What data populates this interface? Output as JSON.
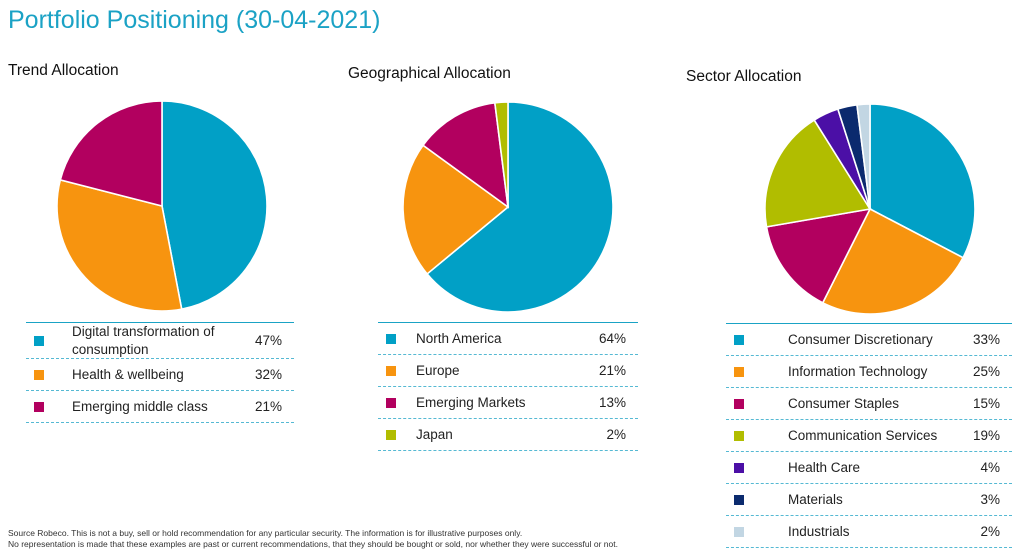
{
  "page": {
    "title": "Portfolio Positioning (30-04-2021)"
  },
  "chart_data": [
    {
      "type": "pie",
      "title": "Trend Allocation",
      "slices": [
        {
          "label": "Digital transformation of consumption",
          "value": 47,
          "display": "47%",
          "color": "#01a0c6"
        },
        {
          "label": "Health & wellbeing",
          "value": 32,
          "display": "32%",
          "color": "#f7940f"
        },
        {
          "label": "Emerging middle class",
          "value": 21,
          "display": "21%",
          "color": "#b2005f"
        }
      ]
    },
    {
      "type": "pie",
      "title": "Geographical Allocation",
      "slices": [
        {
          "label": "North America",
          "value": 64,
          "display": "64%",
          "color": "#01a0c6"
        },
        {
          "label": "Europe",
          "value": 21,
          "display": "21%",
          "color": "#f7940f"
        },
        {
          "label": "Emerging Markets",
          "value": 13,
          "display": "13%",
          "color": "#b2005f"
        },
        {
          "label": "Japan",
          "value": 2,
          "display": "2%",
          "color": "#b1bd00"
        }
      ]
    },
    {
      "type": "pie",
      "title": "Sector Allocation",
      "slices": [
        {
          "label": "Consumer Discretionary",
          "value": 33,
          "display": "33%",
          "color": "#01a0c6"
        },
        {
          "label": "Information Technology",
          "value": 25,
          "display": "25%",
          "color": "#f7940f"
        },
        {
          "label": "Consumer Staples",
          "value": 15,
          "display": "15%",
          "color": "#b2005f"
        },
        {
          "label": "Communication Services",
          "value": 19,
          "display": "19%",
          "color": "#b1bd00"
        },
        {
          "label": "Health Care",
          "value": 4,
          "display": "4%",
          "color": "#4b0fa6"
        },
        {
          "label": "Materials",
          "value": 3,
          "display": "3%",
          "color": "#0b2a6e"
        },
        {
          "label": "Industrials",
          "value": 2,
          "display": "2%",
          "color": "#c2d6e3"
        }
      ]
    }
  ],
  "disclaimer": {
    "line1": "Source Robeco. This is not a buy, sell or hold recommendation for any particular security. The information is for illustrative purposes only.",
    "line2": "No representation is made that these examples are past or current recommendations, that they should be bought or sold, nor whether they were successful or not."
  }
}
